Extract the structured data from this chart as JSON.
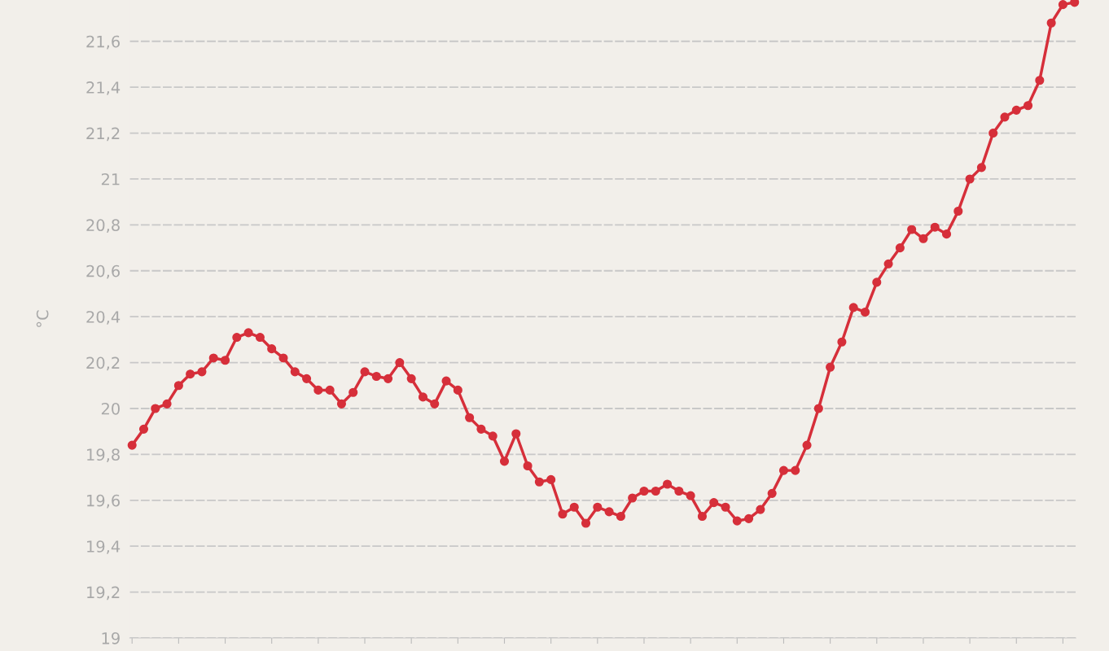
{
  "chart_data": {
    "type": "line",
    "ylabel": "°C",
    "categories": [
      null,
      null,
      null,
      null,
      null,
      null,
      null,
      null,
      null,
      null,
      null,
      null,
      null,
      null,
      null,
      null,
      null,
      null,
      null,
      null,
      null,
      null,
      null,
      null,
      null,
      null,
      null,
      null,
      null,
      null,
      null,
      null,
      null,
      null,
      null,
      null,
      null,
      null,
      null,
      null,
      null,
      null,
      null,
      null,
      null,
      null,
      null,
      null,
      null,
      null,
      null,
      null,
      null,
      null,
      null,
      null,
      null,
      null,
      null,
      null,
      null,
      null,
      null,
      null,
      null,
      null,
      null,
      null,
      null,
      null,
      null,
      null,
      null,
      null,
      null,
      null,
      null,
      null,
      null,
      null,
      null,
      null
    ],
    "series": [
      {
        "color": "#d62f3a",
        "values": [
          19.84,
          19.91,
          20.0,
          20.02,
          20.1,
          20.15,
          20.16,
          20.22,
          20.21,
          20.31,
          20.33,
          20.31,
          20.26,
          20.22,
          20.16,
          20.13,
          20.08,
          20.08,
          20.02,
          20.07,
          20.16,
          20.14,
          20.13,
          20.2,
          20.13,
          20.05,
          20.02,
          20.12,
          20.08,
          19.96,
          19.91,
          19.88,
          19.77,
          19.89,
          19.75,
          19.68,
          19.69,
          19.54,
          19.57,
          19.5,
          19.57,
          19.55,
          19.53,
          19.61,
          19.64,
          19.64,
          19.67,
          19.64,
          19.62,
          19.53,
          19.59,
          19.57,
          19.51,
          19.52,
          19.56,
          19.63,
          19.73,
          19.73,
          19.84,
          20.0,
          20.18,
          20.29,
          20.44,
          20.42,
          20.55,
          20.63,
          20.7,
          20.78,
          20.74,
          20.79,
          20.76,
          20.86,
          21.0,
          21.05,
          21.2,
          21.27,
          21.3,
          21.32,
          21.43,
          21.68,
          21.76,
          21.77
        ]
      }
    ],
    "ylim": [
      19,
      21.78
    ],
    "yticks": [
      19,
      {
        "value": 19.2,
        "label": "19,2"
      },
      {
        "value": 19.4,
        "label": "19,4"
      },
      {
        "value": 19.6,
        "label": "19,6"
      },
      {
        "value": 19.8,
        "label": "19,8"
      },
      20,
      {
        "value": 20.2,
        "label": "20,2"
      },
      {
        "value": 20.4,
        "label": "20,4"
      },
      {
        "value": 20.6,
        "label": "20,6"
      },
      {
        "value": 20.8,
        "label": "20,8"
      },
      21,
      {
        "value": 21.2,
        "label": "21,2"
      },
      {
        "value": 21.4,
        "label": "21,4"
      },
      {
        "value": 21.6,
        "label": "21,6"
      }
    ],
    "grid": "y",
    "legend": false,
    "marker": "circle",
    "line_style": "solid"
  }
}
